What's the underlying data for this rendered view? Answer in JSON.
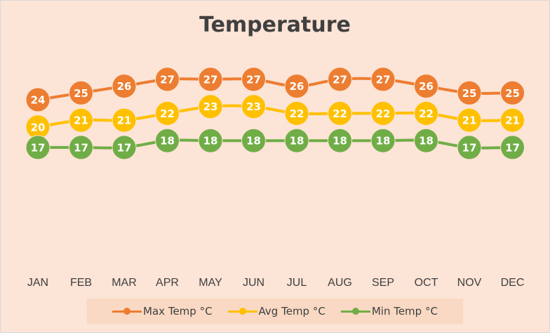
{
  "chart_data": {
    "type": "line",
    "title": "Temperature",
    "categories": [
      "JAN",
      "FEB",
      "MAR",
      "APR",
      "MAY",
      "JUN",
      "JUL",
      "AUG",
      "SEP",
      "OCT",
      "NOV",
      "DEC"
    ],
    "series": [
      {
        "name": "Max Temp °C",
        "color": "#ed7d31",
        "values": [
          24,
          25,
          26,
          27,
          27,
          27,
          26,
          27,
          27,
          26,
          25,
          25
        ]
      },
      {
        "name": "Avg Temp °C",
        "color": "#ffc000",
        "values": [
          20,
          21,
          21,
          22,
          23,
          23,
          22,
          22,
          22,
          22,
          21,
          21
        ]
      },
      {
        "name": "Min Temp °C",
        "color": "#70ad47",
        "values": [
          17,
          17,
          17,
          18,
          18,
          18,
          18,
          18,
          18,
          18,
          17,
          17
        ]
      }
    ],
    "data_labels": true,
    "grid": false,
    "legend": "bottom",
    "background": "#fce4d6"
  }
}
